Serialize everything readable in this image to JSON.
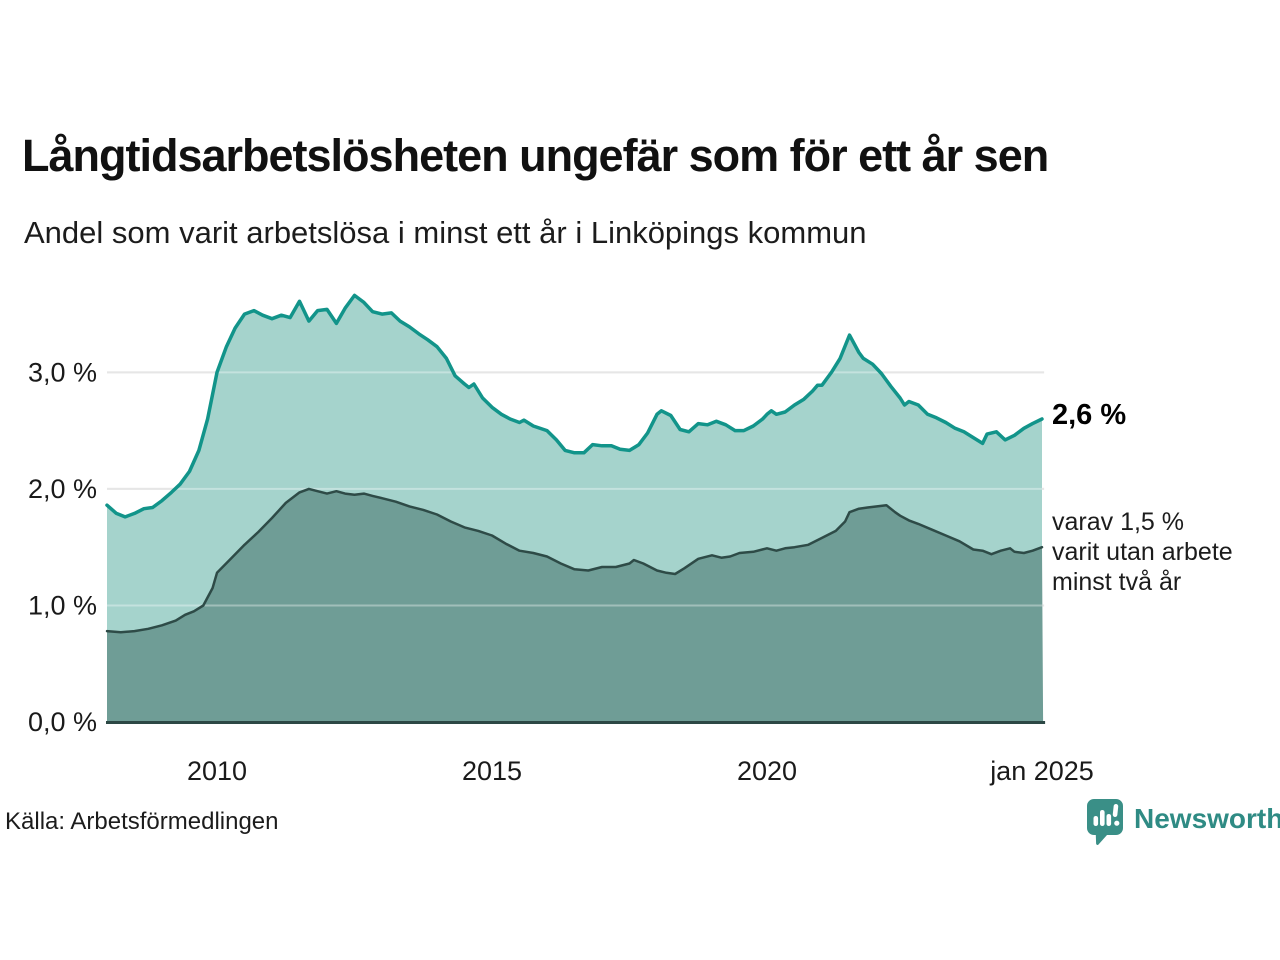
{
  "header": {
    "note": ""
  },
  "chart_data": {
    "type": "area",
    "title": "Långtidsarbetslösheten ungefär som för ett år sen",
    "subtitle": "Andel som varit arbetslösa i minst ett år i Linköpings kommun",
    "unit": "%",
    "grid": "horizontal",
    "legend_position": "none",
    "xlim": [
      2008.0,
      2025.02
    ],
    "ylim": [
      0,
      3.8
    ],
    "y_ticks": [
      {
        "value": 0,
        "label": "0,0 %"
      },
      {
        "value": 1,
        "label": "1,0 %"
      },
      {
        "value": 2,
        "label": "2,0 %"
      },
      {
        "value": 3,
        "label": "3,0 %"
      }
    ],
    "x_ticks": [
      {
        "year": 2010,
        "label": "2010"
      },
      {
        "year": 2015,
        "label": "2015"
      },
      {
        "year": 2020,
        "label": "2020"
      },
      {
        "year": 2025,
        "label": "jan 2025"
      }
    ],
    "colors": {
      "upper_line": "#12948a",
      "upper_fill": "#a5d3cc",
      "lower_line": "#2e4b47",
      "lower_fill": "#6f9d96",
      "gridline": "#d9d9d9",
      "axis_line": "#2c4845",
      "text": "#1a1a1a",
      "brand_teal": "#2f8b84"
    },
    "series": [
      {
        "name": "minst ett år",
        "latest_value_pct": 2.6,
        "points": [
          [
            2008.0,
            1.86
          ],
          [
            2008.17,
            1.79
          ],
          [
            2008.33,
            1.76
          ],
          [
            2008.5,
            1.79
          ],
          [
            2008.67,
            1.83
          ],
          [
            2008.83,
            1.84
          ],
          [
            2009.0,
            1.9
          ],
          [
            2009.17,
            1.97
          ],
          [
            2009.33,
            2.04
          ],
          [
            2009.5,
            2.15
          ],
          [
            2009.67,
            2.33
          ],
          [
            2009.83,
            2.6
          ],
          [
            2010.0,
            3.0
          ],
          [
            2010.17,
            3.22
          ],
          [
            2010.33,
            3.38
          ],
          [
            2010.5,
            3.5
          ],
          [
            2010.67,
            3.53
          ],
          [
            2010.83,
            3.49
          ],
          [
            2011.0,
            3.46
          ],
          [
            2011.17,
            3.49
          ],
          [
            2011.33,
            3.47
          ],
          [
            2011.5,
            3.61
          ],
          [
            2011.67,
            3.44
          ],
          [
            2011.83,
            3.53
          ],
          [
            2012.0,
            3.54
          ],
          [
            2012.17,
            3.42
          ],
          [
            2012.33,
            3.55
          ],
          [
            2012.5,
            3.66
          ],
          [
            2012.67,
            3.6
          ],
          [
            2012.83,
            3.52
          ],
          [
            2013.0,
            3.5
          ],
          [
            2013.17,
            3.51
          ],
          [
            2013.33,
            3.44
          ],
          [
            2013.5,
            3.39
          ],
          [
            2013.67,
            3.33
          ],
          [
            2013.83,
            3.28
          ],
          [
            2014.0,
            3.22
          ],
          [
            2014.17,
            3.12
          ],
          [
            2014.33,
            2.97
          ],
          [
            2014.5,
            2.9
          ],
          [
            2014.58,
            2.87
          ],
          [
            2014.67,
            2.9
          ],
          [
            2014.83,
            2.78
          ],
          [
            2015.0,
            2.7
          ],
          [
            2015.17,
            2.64
          ],
          [
            2015.33,
            2.6
          ],
          [
            2015.5,
            2.57
          ],
          [
            2015.58,
            2.59
          ],
          [
            2015.75,
            2.54
          ],
          [
            2016.0,
            2.5
          ],
          [
            2016.17,
            2.42
          ],
          [
            2016.33,
            2.33
          ],
          [
            2016.5,
            2.31
          ],
          [
            2016.67,
            2.31
          ],
          [
            2016.83,
            2.38
          ],
          [
            2017.0,
            2.37
          ],
          [
            2017.17,
            2.37
          ],
          [
            2017.33,
            2.34
          ],
          [
            2017.5,
            2.33
          ],
          [
            2017.67,
            2.38
          ],
          [
            2017.83,
            2.48
          ],
          [
            2018.0,
            2.64
          ],
          [
            2018.08,
            2.67
          ],
          [
            2018.25,
            2.63
          ],
          [
            2018.42,
            2.51
          ],
          [
            2018.58,
            2.49
          ],
          [
            2018.75,
            2.56
          ],
          [
            2018.92,
            2.55
          ],
          [
            2019.08,
            2.58
          ],
          [
            2019.25,
            2.55
          ],
          [
            2019.42,
            2.5
          ],
          [
            2019.58,
            2.5
          ],
          [
            2019.75,
            2.54
          ],
          [
            2019.92,
            2.6
          ],
          [
            2020.0,
            2.64
          ],
          [
            2020.08,
            2.67
          ],
          [
            2020.17,
            2.64
          ],
          [
            2020.33,
            2.66
          ],
          [
            2020.5,
            2.72
          ],
          [
            2020.67,
            2.77
          ],
          [
            2020.83,
            2.84
          ],
          [
            2020.92,
            2.89
          ],
          [
            2021.0,
            2.89
          ],
          [
            2021.17,
            3.0
          ],
          [
            2021.33,
            3.12
          ],
          [
            2021.5,
            3.32
          ],
          [
            2021.67,
            3.17
          ],
          [
            2021.75,
            3.12
          ],
          [
            2021.92,
            3.07
          ],
          [
            2022.08,
            2.99
          ],
          [
            2022.25,
            2.88
          ],
          [
            2022.42,
            2.78
          ],
          [
            2022.5,
            2.72
          ],
          [
            2022.58,
            2.75
          ],
          [
            2022.75,
            2.72
          ],
          [
            2022.92,
            2.64
          ],
          [
            2023.08,
            2.61
          ],
          [
            2023.25,
            2.57
          ],
          [
            2023.42,
            2.52
          ],
          [
            2023.58,
            2.49
          ],
          [
            2023.75,
            2.44
          ],
          [
            2023.92,
            2.39
          ],
          [
            2024.0,
            2.47
          ],
          [
            2024.17,
            2.49
          ],
          [
            2024.33,
            2.42
          ],
          [
            2024.5,
            2.46
          ],
          [
            2024.67,
            2.52
          ],
          [
            2024.83,
            2.56
          ],
          [
            2025.0,
            2.6
          ]
        ]
      },
      {
        "name": "minst två år",
        "latest_value_pct": 1.5,
        "points": [
          [
            2008.0,
            0.78
          ],
          [
            2008.25,
            0.77
          ],
          [
            2008.5,
            0.78
          ],
          [
            2008.75,
            0.8
          ],
          [
            2009.0,
            0.83
          ],
          [
            2009.25,
            0.87
          ],
          [
            2009.42,
            0.92
          ],
          [
            2009.58,
            0.95
          ],
          [
            2009.75,
            1.0
          ],
          [
            2009.92,
            1.15
          ],
          [
            2010.0,
            1.28
          ],
          [
            2010.25,
            1.4
          ],
          [
            2010.5,
            1.52
          ],
          [
            2010.75,
            1.63
          ],
          [
            2011.0,
            1.75
          ],
          [
            2011.25,
            1.88
          ],
          [
            2011.5,
            1.97
          ],
          [
            2011.67,
            2.0
          ],
          [
            2011.83,
            1.98
          ],
          [
            2012.0,
            1.96
          ],
          [
            2012.17,
            1.98
          ],
          [
            2012.33,
            1.96
          ],
          [
            2012.5,
            1.95
          ],
          [
            2012.67,
            1.96
          ],
          [
            2012.83,
            1.94
          ],
          [
            2013.0,
            1.92
          ],
          [
            2013.25,
            1.89
          ],
          [
            2013.5,
            1.85
          ],
          [
            2013.75,
            1.82
          ],
          [
            2014.0,
            1.78
          ],
          [
            2014.25,
            1.72
          ],
          [
            2014.5,
            1.67
          ],
          [
            2014.75,
            1.64
          ],
          [
            2015.0,
            1.6
          ],
          [
            2015.25,
            1.53
          ],
          [
            2015.5,
            1.47
          ],
          [
            2015.75,
            1.45
          ],
          [
            2016.0,
            1.42
          ],
          [
            2016.25,
            1.36
          ],
          [
            2016.5,
            1.31
          ],
          [
            2016.75,
            1.3
          ],
          [
            2017.0,
            1.33
          ],
          [
            2017.25,
            1.33
          ],
          [
            2017.5,
            1.36
          ],
          [
            2017.58,
            1.39
          ],
          [
            2017.75,
            1.36
          ],
          [
            2018.0,
            1.3
          ],
          [
            2018.17,
            1.28
          ],
          [
            2018.33,
            1.27
          ],
          [
            2018.5,
            1.32
          ],
          [
            2018.75,
            1.4
          ],
          [
            2019.0,
            1.43
          ],
          [
            2019.17,
            1.41
          ],
          [
            2019.33,
            1.42
          ],
          [
            2019.5,
            1.45
          ],
          [
            2019.75,
            1.46
          ],
          [
            2020.0,
            1.49
          ],
          [
            2020.17,
            1.47
          ],
          [
            2020.33,
            1.49
          ],
          [
            2020.5,
            1.5
          ],
          [
            2020.75,
            1.52
          ],
          [
            2021.0,
            1.58
          ],
          [
            2021.25,
            1.64
          ],
          [
            2021.42,
            1.72
          ],
          [
            2021.5,
            1.8
          ],
          [
            2021.67,
            1.83
          ],
          [
            2021.83,
            1.84
          ],
          [
            2022.0,
            1.85
          ],
          [
            2022.17,
            1.86
          ],
          [
            2022.33,
            1.8
          ],
          [
            2022.42,
            1.77
          ],
          [
            2022.58,
            1.73
          ],
          [
            2022.75,
            1.7
          ],
          [
            2023.0,
            1.65
          ],
          [
            2023.25,
            1.6
          ],
          [
            2023.5,
            1.55
          ],
          [
            2023.75,
            1.48
          ],
          [
            2023.92,
            1.47
          ],
          [
            2024.08,
            1.44
          ],
          [
            2024.25,
            1.47
          ],
          [
            2024.42,
            1.49
          ],
          [
            2024.5,
            1.46
          ],
          [
            2024.67,
            1.45
          ],
          [
            2024.83,
            1.47
          ],
          [
            2025.0,
            1.5
          ]
        ]
      }
    ],
    "annotations": {
      "latest_value": "2,6 %",
      "secondary_lines": [
        "varav 1,5 %",
        "varit utan arbete",
        "minst två år"
      ]
    }
  },
  "footer": {
    "source": "Källa: Arbetsförmedlingen",
    "brand": "Newsworthy"
  }
}
